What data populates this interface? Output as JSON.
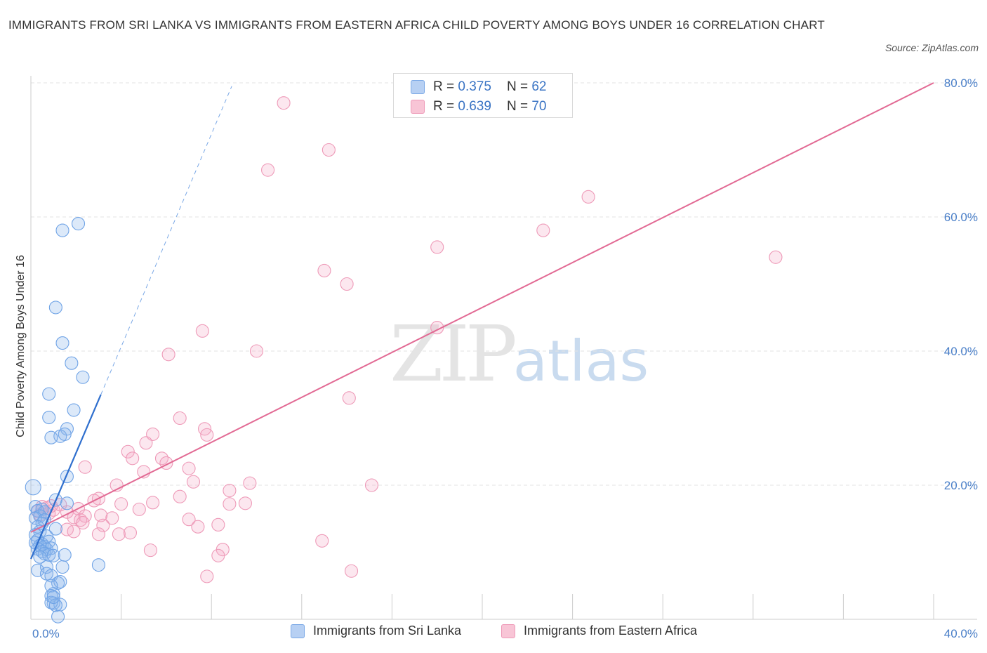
{
  "title": "IMMIGRANTS FROM SRI LANKA VS IMMIGRANTS FROM EASTERN AFRICA CHILD POVERTY AMONG BOYS UNDER 16 CORRELATION CHART",
  "source": "Source: ZipAtlas.com",
  "watermark": {
    "zip": "ZIP",
    "atlas": "atlas"
  },
  "legend": {
    "r_label": "R =",
    "n_label": "N =",
    "series1": {
      "r": "0.375",
      "n": "62"
    },
    "series2": {
      "r": "0.639",
      "n": "70"
    }
  },
  "colors": {
    "blue": "#6fa3e6",
    "pink": "#ee8fb0",
    "blue_line": "#2f6fce",
    "pink_line": "#e26a94"
  },
  "chart_data": {
    "type": "scatter",
    "title": "IMMIGRANTS FROM SRI LANKA VS IMMIGRANTS FROM EASTERN AFRICA CHILD POVERTY AMONG BOYS UNDER 16 CORRELATION CHART",
    "xlabel": "",
    "ylabel": "Child Poverty Among Boys Under 16",
    "xlim": [
      0,
      40
    ],
    "ylim": [
      0,
      80
    ],
    "x_tick_labels": [
      "0.0%",
      "40.0%"
    ],
    "y_ticks": [
      20,
      40,
      60,
      80
    ],
    "y_tick_labels": [
      "20.0%",
      "40.0%",
      "60.0%",
      "80.0%"
    ],
    "series": [
      {
        "name": "Immigrants from Sri Lanka",
        "r": 0.375,
        "n": 62,
        "trend": {
          "x0": 0.0,
          "y0": 9.0,
          "x1": 3.1,
          "y1": 33.5,
          "dash_to": {
            "x": 8.9,
            "y": 79.5
          }
        },
        "points": [
          [
            2.1,
            59
          ],
          [
            1.4,
            58
          ],
          [
            1.1,
            46.5
          ],
          [
            1.4,
            41.2
          ],
          [
            1.8,
            38.2
          ],
          [
            2.3,
            36.1
          ],
          [
            0.8,
            33.6
          ],
          [
            1.9,
            31.2
          ],
          [
            0.8,
            30.1
          ],
          [
            1.6,
            28.4
          ],
          [
            1.3,
            27.3
          ],
          [
            1.5,
            27.6
          ],
          [
            0.9,
            27.1
          ],
          [
            1.6,
            21.3
          ],
          [
            0.1,
            19.7
          ],
          [
            1.1,
            17.8
          ],
          [
            1.6,
            17.3
          ],
          [
            0.2,
            16.8
          ],
          [
            0.5,
            16.4
          ],
          [
            0.3,
            16.2
          ],
          [
            0.6,
            16.0
          ],
          [
            0.4,
            15.4
          ],
          [
            0.2,
            15.1
          ],
          [
            0.6,
            14.8
          ],
          [
            0.5,
            14.3
          ],
          [
            0.3,
            13.8
          ],
          [
            1.1,
            13.5
          ],
          [
            0.4,
            13.1
          ],
          [
            0.2,
            12.6
          ],
          [
            0.7,
            12.4
          ],
          [
            0.3,
            11.8
          ],
          [
            0.2,
            11.4
          ],
          [
            0.5,
            11.2
          ],
          [
            0.8,
            11.6
          ],
          [
            0.4,
            11.0
          ],
          [
            0.6,
            10.8
          ],
          [
            0.3,
            10.5
          ],
          [
            0.7,
            10.4
          ],
          [
            0.9,
            10.6
          ],
          [
            0.5,
            10.1
          ],
          [
            0.6,
            9.8
          ],
          [
            0.8,
            9.6
          ],
          [
            1.0,
            9.5
          ],
          [
            0.4,
            9.3
          ],
          [
            1.5,
            9.6
          ],
          [
            3.0,
            8.1
          ],
          [
            0.7,
            7.8
          ],
          [
            1.4,
            7.8
          ],
          [
            0.3,
            7.3
          ],
          [
            0.7,
            6.8
          ],
          [
            0.9,
            6.5
          ],
          [
            1.2,
            5.4
          ],
          [
            1.3,
            5.6
          ],
          [
            0.9,
            5.0
          ],
          [
            1.0,
            3.8
          ],
          [
            0.9,
            3.5
          ],
          [
            1.0,
            2.4
          ],
          [
            1.3,
            2.2
          ],
          [
            0.9,
            2.5
          ],
          [
            1.1,
            2.1
          ],
          [
            1.2,
            0.4
          ],
          [
            1.0,
            3.3
          ]
        ]
      },
      {
        "name": "Immigrants from Eastern Africa",
        "r": 0.639,
        "n": 70,
        "trend": {
          "x0": 0.0,
          "y0": 13.0,
          "x1": 40.0,
          "y1": 80.0
        },
        "points": [
          [
            11.2,
            77
          ],
          [
            13.2,
            70
          ],
          [
            10.5,
            67
          ],
          [
            24.7,
            63
          ],
          [
            22.7,
            58
          ],
          [
            18.0,
            55.5
          ],
          [
            33.0,
            54
          ],
          [
            13.0,
            52
          ],
          [
            14.0,
            50
          ],
          [
            7.6,
            43
          ],
          [
            10.0,
            40
          ],
          [
            18.0,
            43.5
          ],
          [
            6.1,
            39.5
          ],
          [
            14.1,
            33
          ],
          [
            6.6,
            30
          ],
          [
            5.4,
            27.6
          ],
          [
            7.7,
            28.4
          ],
          [
            7.8,
            27.5
          ],
          [
            5.1,
            26.3
          ],
          [
            4.3,
            25
          ],
          [
            4.5,
            24
          ],
          [
            5.8,
            24
          ],
          [
            6.0,
            23.3
          ],
          [
            2.4,
            22.7
          ],
          [
            7.0,
            22.5
          ],
          [
            5.0,
            22
          ],
          [
            3.8,
            20
          ],
          [
            7.2,
            20.5
          ],
          [
            8.8,
            19.2
          ],
          [
            9.7,
            20.3
          ],
          [
            15.1,
            20
          ],
          [
            6.6,
            18.3
          ],
          [
            3.0,
            18
          ],
          [
            2.8,
            17.7
          ],
          [
            4.0,
            17.2
          ],
          [
            5.4,
            17.4
          ],
          [
            8.8,
            17.2
          ],
          [
            9.5,
            17.3
          ],
          [
            2.1,
            16.5
          ],
          [
            0.5,
            16.8
          ],
          [
            0.7,
            16.6
          ],
          [
            1.0,
            16.3
          ],
          [
            1.6,
            16.0
          ],
          [
            0.4,
            15.6
          ],
          [
            3.1,
            15.5
          ],
          [
            2.4,
            15.4
          ],
          [
            1.9,
            15.2
          ],
          [
            3.6,
            15.1
          ],
          [
            2.2,
            14.8
          ],
          [
            7.0,
            14.9
          ],
          [
            4.8,
            16.4
          ],
          [
            2.3,
            14.4
          ],
          [
            1.6,
            13.4
          ],
          [
            3.2,
            14.0
          ],
          [
            8.3,
            14.1
          ],
          [
            7.4,
            13.8
          ],
          [
            1.9,
            13.1
          ],
          [
            3.9,
            12.7
          ],
          [
            4.4,
            12.9
          ],
          [
            3.0,
            12.7
          ],
          [
            0.8,
            15.8
          ],
          [
            0.9,
            16.9
          ],
          [
            12.9,
            11.7
          ],
          [
            5.3,
            10.3
          ],
          [
            8.5,
            10.4
          ],
          [
            8.3,
            9.5
          ],
          [
            14.2,
            7.2
          ],
          [
            7.8,
            6.4
          ],
          [
            0.3,
            16.1
          ],
          [
            1.3,
            17.1
          ]
        ]
      }
    ]
  }
}
